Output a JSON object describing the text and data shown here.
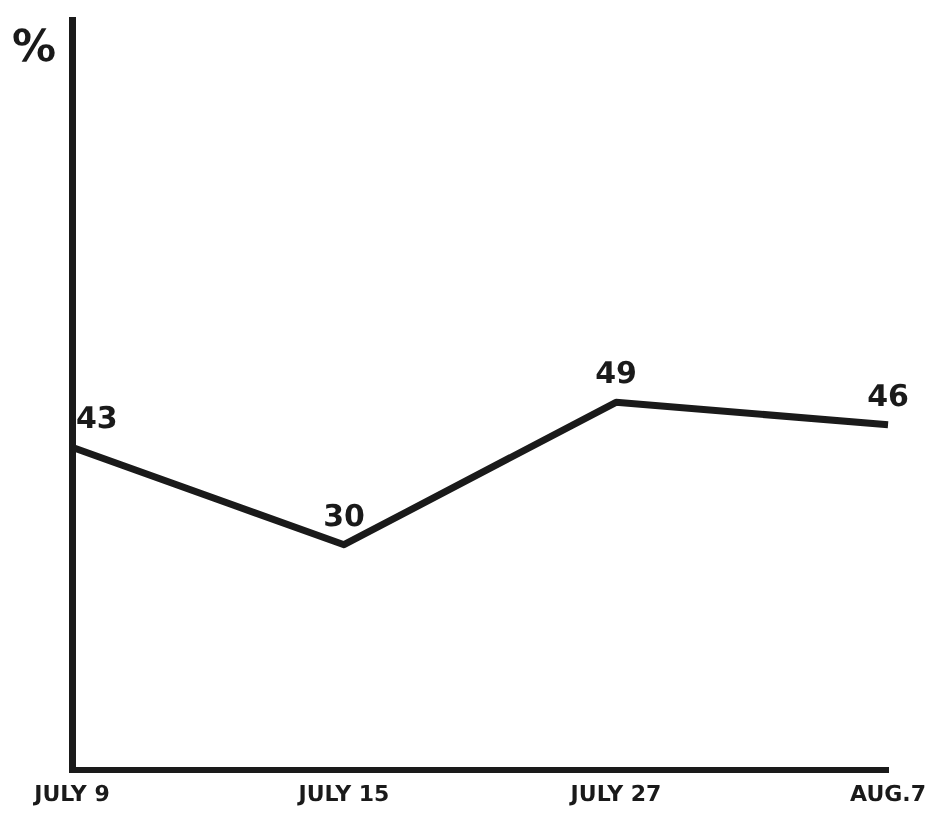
{
  "chart_data": {
    "type": "line",
    "ylabel": "%",
    "categories": [
      "JULY 9",
      "JULY 15",
      "JULY 27",
      "AUG.7"
    ],
    "series": [
      {
        "color": "#1a1a1a",
        "values": [
          43,
          30,
          49,
          46
        ]
      }
    ],
    "ylim": [
      0,
      100
    ],
    "data_labels": true,
    "tick_labels": "x",
    "grid": false,
    "legend": false,
    "marker": "none",
    "line_style": "solid"
  }
}
